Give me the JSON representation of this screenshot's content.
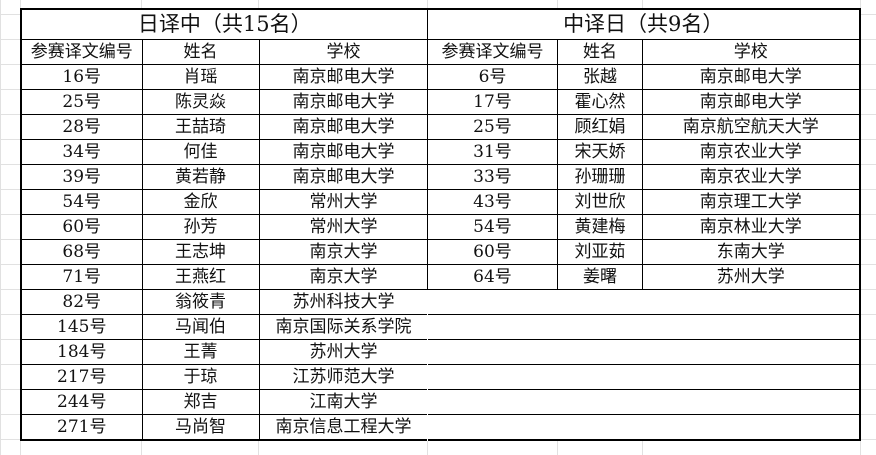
{
  "left": {
    "title": "日译中（共15名）",
    "headers": [
      "参赛译文编号",
      "姓名",
      "学校"
    ],
    "rows": [
      [
        "16号",
        "肖瑶",
        "南京邮电大学"
      ],
      [
        "25号",
        "陈灵焱",
        "南京邮电大学"
      ],
      [
        "28号",
        "王喆琦",
        "南京邮电大学"
      ],
      [
        "34号",
        "何佳",
        "南京邮电大学"
      ],
      [
        "39号",
        "黄若静",
        "南京邮电大学"
      ],
      [
        "54号",
        "金欣",
        "常州大学"
      ],
      [
        "60号",
        "孙芳",
        "常州大学"
      ],
      [
        "68号",
        "王志坤",
        "南京大学"
      ],
      [
        "71号",
        "王燕红",
        "南京大学"
      ],
      [
        "82号",
        "翁筱青",
        "苏州科技大学"
      ],
      [
        "145号",
        "马闻伯",
        "南京国际关系学院"
      ],
      [
        "184号",
        "王菁",
        "苏州大学"
      ],
      [
        "217号",
        "于琼",
        "江苏师范大学"
      ],
      [
        "244号",
        "郑吉",
        "江南大学"
      ],
      [
        "271号",
        "马尚智",
        "南京信息工程大学"
      ]
    ]
  },
  "right": {
    "title": "中译日（共9名）",
    "headers": [
      "参赛译文编号",
      "姓名",
      "学校"
    ],
    "rows": [
      [
        "6号",
        "张越",
        "南京邮电大学"
      ],
      [
        "17号",
        "霍心然",
        "南京邮电大学"
      ],
      [
        "25号",
        "顾红娟",
        "南京航空航天大学"
      ],
      [
        "31号",
        "宋天娇",
        "南京农业大学"
      ],
      [
        "33号",
        "孙珊珊",
        "南京农业大学"
      ],
      [
        "43号",
        "刘世欣",
        "南京理工大学"
      ],
      [
        "54号",
        "黄建梅",
        "南京林业大学"
      ],
      [
        "60号",
        "刘亚茹",
        "东南大学"
      ],
      [
        "64号",
        "姜曙",
        "苏州大学"
      ]
    ]
  }
}
